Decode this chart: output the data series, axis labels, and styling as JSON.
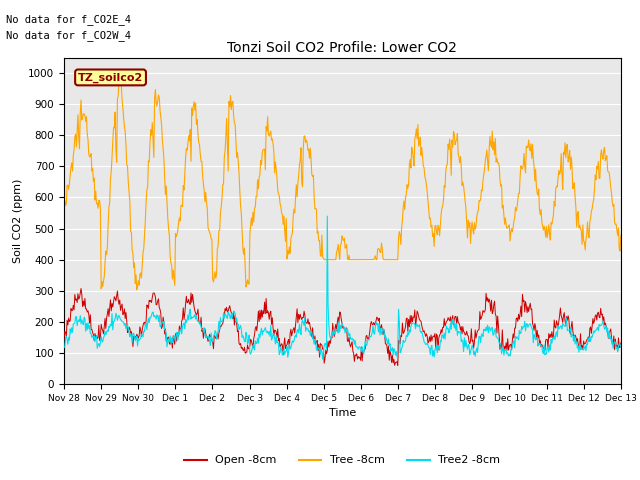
{
  "title": "Tonzi Soil CO2 Profile: Lower CO2",
  "xlabel": "Time",
  "ylabel": "Soil CO2 (ppm)",
  "ylim": [
    0,
    1050
  ],
  "yticks": [
    0,
    100,
    200,
    300,
    400,
    500,
    600,
    700,
    800,
    900,
    1000
  ],
  "annotations": [
    "No data for f_CO2E_4",
    "No data for f_CO2W_4"
  ],
  "legend_label": "TZ_soilco2",
  "line_colors": {
    "open": "#cc0000",
    "tree": "#ffa500",
    "tree2": "#00ddee"
  },
  "line_labels": [
    "Open -8cm",
    "Tree -8cm",
    "Tree2 -8cm"
  ],
  "bg_color": "#e8e8e8",
  "xtick_labels": [
    "Nov 28",
    "Nov 29",
    "Nov 30",
    "Dec 1",
    "Dec 2",
    "Dec 3",
    "Dec 4",
    "Dec 5",
    "Dec 6",
    "Dec 7",
    "Dec 8",
    "Dec 9",
    "Dec 10",
    "Dec 11",
    "Dec 12",
    "Dec 13"
  ]
}
